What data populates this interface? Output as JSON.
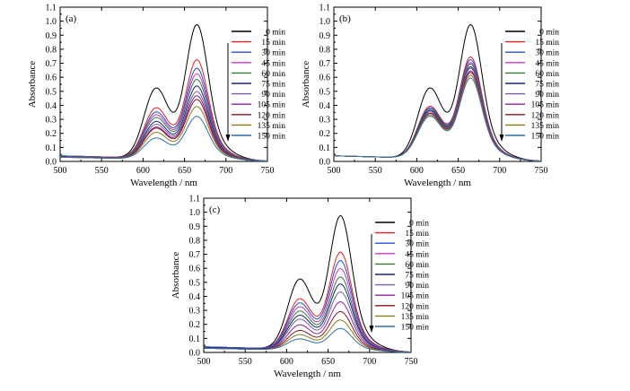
{
  "chart_data": [
    {
      "type": "line",
      "panel_label": "(a)",
      "xlabel": "Wavelength / nm",
      "ylabel": "Absorbance",
      "xlim": [
        500,
        750
      ],
      "ylim": [
        0.0,
        1.1
      ],
      "xticks": [
        500,
        550,
        600,
        650,
        700,
        750
      ],
      "yticks": [
        0.0,
        0.1,
        0.2,
        0.3,
        0.4,
        0.5,
        0.6,
        0.7,
        0.8,
        0.9,
        1.0,
        1.1
      ],
      "peak_wavelength": 665,
      "shoulder_wavelength": 615,
      "legend_position": "right",
      "series": [
        {
          "name": "0 min",
          "peak": 1.0,
          "shoulder": 0.54,
          "baseline": 0.04,
          "color": "#000000"
        },
        {
          "name": "15 min",
          "peak": 0.75,
          "shoulder": 0.4,
          "baseline": 0.04,
          "color": "#e8221a"
        },
        {
          "name": "30 min",
          "peak": 0.69,
          "shoulder": 0.37,
          "baseline": 0.04,
          "color": "#1f4fd8"
        },
        {
          "name": "45 min",
          "peak": 0.65,
          "shoulder": 0.35,
          "baseline": 0.04,
          "color": "#c838c8"
        },
        {
          "name": "60 min",
          "peak": 0.61,
          "shoulder": 0.33,
          "baseline": 0.04,
          "color": "#2f7d32"
        },
        {
          "name": "75 min",
          "peak": 0.56,
          "shoulder": 0.3,
          "baseline": 0.035,
          "color": "#1a237e"
        },
        {
          "name": "90 min",
          "peak": 0.52,
          "shoulder": 0.28,
          "baseline": 0.035,
          "color": "#7b5ea7"
        },
        {
          "name": "105 min",
          "peak": 0.49,
          "shoulder": 0.26,
          "baseline": 0.035,
          "color": "#8e1fa0"
        },
        {
          "name": "120 min",
          "peak": 0.46,
          "shoulder": 0.25,
          "baseline": 0.03,
          "color": "#8b1a1a"
        },
        {
          "name": "135 min",
          "peak": 0.41,
          "shoulder": 0.22,
          "baseline": 0.03,
          "color": "#8a7a1a"
        },
        {
          "name": "150 min",
          "peak": 0.34,
          "shoulder": 0.18,
          "baseline": 0.03,
          "color": "#2e6fa8"
        }
      ]
    },
    {
      "type": "line",
      "panel_label": "(b)",
      "xlabel": "Wavelength / nm",
      "ylabel": "Absorbance",
      "xlim": [
        500,
        750
      ],
      "ylim": [
        0.0,
        1.1
      ],
      "xticks": [
        500,
        550,
        600,
        650,
        700,
        750
      ],
      "yticks": [
        0.0,
        0.1,
        0.2,
        0.3,
        0.4,
        0.5,
        0.6,
        0.7,
        0.8,
        0.9,
        1.0,
        1.1
      ],
      "peak_wavelength": 665,
      "shoulder_wavelength": 615,
      "legend_position": "right",
      "series": [
        {
          "name": "0 min",
          "peak": 1.0,
          "shoulder": 0.54,
          "baseline": 0.04,
          "color": "#000000"
        },
        {
          "name": "15 min",
          "peak": 0.77,
          "shoulder": 0.41,
          "baseline": 0.04,
          "color": "#e8221a"
        },
        {
          "name": "30 min",
          "peak": 0.75,
          "shoulder": 0.4,
          "baseline": 0.04,
          "color": "#1f4fd8"
        },
        {
          "name": "45 min",
          "peak": 0.73,
          "shoulder": 0.39,
          "baseline": 0.04,
          "color": "#c838c8"
        },
        {
          "name": "60 min",
          "peak": 0.72,
          "shoulder": 0.39,
          "baseline": 0.04,
          "color": "#2f7d32"
        },
        {
          "name": "75 min",
          "peak": 0.7,
          "shoulder": 0.38,
          "baseline": 0.04,
          "color": "#1a237e"
        },
        {
          "name": "90 min",
          "peak": 0.69,
          "shoulder": 0.37,
          "baseline": 0.04,
          "color": "#7b5ea7"
        },
        {
          "name": "105 min",
          "peak": 0.67,
          "shoulder": 0.36,
          "baseline": 0.04,
          "color": "#8e1fa0"
        },
        {
          "name": "120 min",
          "peak": 0.66,
          "shoulder": 0.36,
          "baseline": 0.04,
          "color": "#8b1a1a"
        },
        {
          "name": "135 min",
          "peak": 0.64,
          "shoulder": 0.35,
          "baseline": 0.04,
          "color": "#8a7a1a"
        },
        {
          "name": "150 min",
          "peak": 0.62,
          "shoulder": 0.34,
          "baseline": 0.04,
          "color": "#2e6fa8"
        }
      ]
    },
    {
      "type": "line",
      "panel_label": "(c)",
      "xlabel": "Wavelength / nm",
      "ylabel": "Absorbance",
      "xlim": [
        500,
        750
      ],
      "ylim": [
        0.0,
        1.1
      ],
      "xticks": [
        500,
        550,
        600,
        650,
        700,
        750
      ],
      "yticks": [
        0.0,
        0.1,
        0.2,
        0.3,
        0.4,
        0.5,
        0.6,
        0.7,
        0.8,
        0.9,
        1.0,
        1.1
      ],
      "peak_wavelength": 665,
      "shoulder_wavelength": 615,
      "legend_position": "right",
      "series": [
        {
          "name": "0 min",
          "peak": 1.0,
          "shoulder": 0.54,
          "baseline": 0.04,
          "color": "#000000"
        },
        {
          "name": "15 min",
          "peak": 0.74,
          "shoulder": 0.4,
          "baseline": 0.04,
          "color": "#e8221a"
        },
        {
          "name": "30 min",
          "peak": 0.68,
          "shoulder": 0.37,
          "baseline": 0.04,
          "color": "#1f4fd8"
        },
        {
          "name": "45 min",
          "peak": 0.62,
          "shoulder": 0.34,
          "baseline": 0.035,
          "color": "#c838c8"
        },
        {
          "name": "60 min",
          "peak": 0.56,
          "shoulder": 0.31,
          "baseline": 0.035,
          "color": "#2f7d32"
        },
        {
          "name": "75 min",
          "peak": 0.51,
          "shoulder": 0.28,
          "baseline": 0.035,
          "color": "#1a237e"
        },
        {
          "name": "90 min",
          "peak": 0.45,
          "shoulder": 0.25,
          "baseline": 0.03,
          "color": "#7b5ea7"
        },
        {
          "name": "105 min",
          "peak": 0.38,
          "shoulder": 0.21,
          "baseline": 0.03,
          "color": "#8e1fa0"
        },
        {
          "name": "120 min",
          "peak": 0.31,
          "shoulder": 0.17,
          "baseline": 0.03,
          "color": "#8b1a1a"
        },
        {
          "name": "135 min",
          "peak": 0.25,
          "shoulder": 0.14,
          "baseline": 0.03,
          "color": "#8a7a1a"
        },
        {
          "name": "150 min",
          "peak": 0.19,
          "shoulder": 0.11,
          "baseline": 0.03,
          "color": "#2e6fa8"
        }
      ]
    }
  ]
}
